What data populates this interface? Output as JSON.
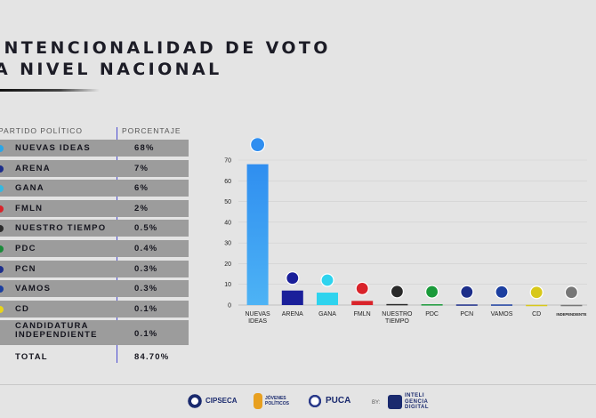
{
  "title": {
    "line1": "INTENCIONALIDAD DE VOTO",
    "line2": "A NIVEL NACIONAL"
  },
  "table": {
    "col_party": "PARTIDO POLÍTICO",
    "col_pct": "PORCENTAJE",
    "rows": [
      {
        "name": "NUEVAS IDEAS",
        "pct": "68%",
        "color": "#2aa6e8"
      },
      {
        "name": "ARENA",
        "pct": "7%",
        "color": "#1c2e8a"
      },
      {
        "name": "GANA",
        "pct": "6%",
        "color": "#35b8e0"
      },
      {
        "name": "FMLN",
        "pct": "2%",
        "color": "#d9232a"
      },
      {
        "name": "NUESTRO TIEMPO",
        "pct": "0.5%",
        "color": "#2a2a2a"
      },
      {
        "name": "PDC",
        "pct": "0.4%",
        "color": "#1a8a3a"
      },
      {
        "name": "PCN",
        "pct": "0.3%",
        "color": "#1c2e8a"
      },
      {
        "name": "VAMOS",
        "pct": "0.3%",
        "color": "#1c3fa0"
      },
      {
        "name": "CD",
        "pct": "0.1%",
        "color": "#e8d41a"
      },
      {
        "name": "CANDIDATURA INDEPENDIENTE",
        "name_l1": "CANDIDATURA",
        "name_l2": "INDEPENDIENTE",
        "pct": "0.1%",
        "color": ""
      }
    ],
    "total_label": "TOTAL",
    "total_value": "84.70%"
  },
  "chart_data": {
    "type": "bar",
    "categories": [
      "NUEVAS IDEAS",
      "ARENA",
      "GANA",
      "FMLN",
      "NUESTRO TIEMPO",
      "PDC",
      "PCN",
      "VAMOS",
      "CD",
      "INDEPENDIENTE"
    ],
    "category_lines": [
      [
        "NUEVAS",
        "IDEAS"
      ],
      [
        "ARENA"
      ],
      [
        "GANA"
      ],
      [
        "FMLN"
      ],
      [
        "NUESTRO",
        "TIEMPO"
      ],
      [
        "PDC"
      ],
      [
        "PCN"
      ],
      [
        "VAMOS"
      ],
      [
        "CD"
      ],
      [
        "INDEPENDIENTE"
      ]
    ],
    "values": [
      68,
      7,
      6,
      2,
      0.5,
      0.4,
      0.3,
      0.3,
      0.1,
      0.1
    ],
    "bar_colors": [
      "#2f8ef0",
      "#1a1f9a",
      "#2ed3ee",
      "#d9232a",
      "#2a2a2a",
      "#1a9a3a",
      "#1c2e8a",
      "#1c3fa0",
      "#d8c81a",
      "#777777"
    ],
    "ylim": [
      0,
      70
    ],
    "yticks": [
      0,
      10,
      20,
      30,
      40,
      50,
      60,
      70
    ],
    "grid": true,
    "xlabel": "",
    "ylabel": ""
  },
  "footer": {
    "logo1": "CIPSECA",
    "logo2": "JÓVENES POLÍTICOS",
    "logo3": "PUCA",
    "by": "BY:",
    "logo4_l1": "INTELI",
    "logo4_l2": "GENCIA",
    "logo4_l3": "DIGITAL"
  }
}
